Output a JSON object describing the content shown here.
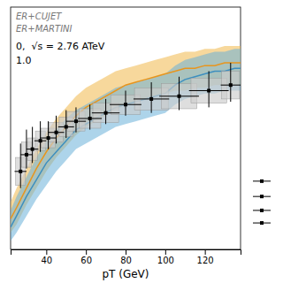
{
  "chart_data": {
    "type": "line",
    "xlabel": "pT (GeV)",
    "xlim": [
      22,
      138
    ],
    "ylim": [
      0.08,
      0.95
    ],
    "xticks": [
      40,
      60,
      80,
      100,
      120
    ],
    "tick_labels": "x",
    "series": [
      {
        "name": "ER+CUJET",
        "type": "line",
        "color": "#e8951d",
        "band_color": "#f0b84a",
        "x": [
          22,
          25,
          30,
          35,
          40,
          45,
          50,
          55,
          60,
          65,
          70,
          75,
          80,
          85,
          90,
          95,
          100,
          105,
          110,
          115,
          120,
          125,
          130,
          135,
          138
        ],
        "values": [
          0.19,
          0.23,
          0.3,
          0.37,
          0.43,
          0.48,
          0.52,
          0.56,
          0.59,
          0.61,
          0.63,
          0.65,
          0.67,
          0.68,
          0.69,
          0.7,
          0.71,
          0.72,
          0.73,
          0.73,
          0.74,
          0.74,
          0.75,
          0.75,
          0.75
        ],
        "low": [
          0.14,
          0.17,
          0.24,
          0.3,
          0.36,
          0.41,
          0.45,
          0.49,
          0.52,
          0.54,
          0.56,
          0.58,
          0.6,
          0.61,
          0.62,
          0.63,
          0.64,
          0.65,
          0.65,
          0.66,
          0.66,
          0.67,
          0.67,
          0.67,
          0.67
        ],
        "high": [
          0.25,
          0.3,
          0.37,
          0.44,
          0.5,
          0.55,
          0.59,
          0.63,
          0.66,
          0.68,
          0.7,
          0.72,
          0.73,
          0.74,
          0.75,
          0.76,
          0.77,
          0.78,
          0.79,
          0.79,
          0.8,
          0.8,
          0.81,
          0.81,
          0.81
        ]
      },
      {
        "name": "ER+MARTINI",
        "type": "line",
        "color": "#3d8fbf",
        "band_color": "#6ab0d8",
        "x": [
          22,
          25,
          30,
          35,
          40,
          45,
          50,
          55,
          60,
          65,
          70,
          75,
          80,
          85,
          90,
          95,
          100,
          105,
          110,
          115,
          120,
          125,
          130,
          135,
          138
        ],
        "values": [
          0.16,
          0.2,
          0.27,
          0.33,
          0.39,
          0.43,
          0.47,
          0.51,
          0.53,
          0.55,
          0.57,
          0.59,
          0.6,
          0.61,
          0.62,
          0.63,
          0.64,
          0.67,
          0.69,
          0.7,
          0.71,
          0.72,
          0.72,
          0.73,
          0.73
        ],
        "low": [
          0.11,
          0.14,
          0.2,
          0.26,
          0.31,
          0.36,
          0.4,
          0.44,
          0.46,
          0.48,
          0.5,
          0.52,
          0.53,
          0.54,
          0.55,
          0.56,
          0.57,
          0.6,
          0.62,
          0.63,
          0.64,
          0.64,
          0.65,
          0.65,
          0.65
        ],
        "high": [
          0.22,
          0.27,
          0.34,
          0.41,
          0.47,
          0.51,
          0.55,
          0.58,
          0.6,
          0.62,
          0.64,
          0.66,
          0.67,
          0.68,
          0.69,
          0.7,
          0.71,
          0.74,
          0.76,
          0.77,
          0.78,
          0.79,
          0.79,
          0.8,
          0.8
        ]
      },
      {
        "type": "scatter",
        "marker": "square",
        "color": "#000000",
        "sys_box_color": "#cccccc",
        "x": [
          27,
          30,
          33,
          37,
          41,
          45,
          50,
          55,
          62,
          70,
          80,
          93,
          107,
          122,
          133
        ],
        "values": [
          0.36,
          0.42,
          0.44,
          0.47,
          0.48,
          0.5,
          0.52,
          0.54,
          0.55,
          0.57,
          0.6,
          0.62,
          0.63,
          0.65,
          0.67
        ],
        "xerr_low": [
          3,
          3,
          3,
          3,
          4,
          4,
          4,
          5,
          6,
          7,
          8,
          9,
          10,
          10,
          5
        ],
        "xerr_high": [
          3,
          3,
          3,
          3,
          4,
          4,
          4,
          5,
          6,
          7,
          8,
          9,
          10,
          10,
          5
        ],
        "yerr_low": [
          0.06,
          0.05,
          0.05,
          0.04,
          0.04,
          0.04,
          0.04,
          0.04,
          0.04,
          0.04,
          0.04,
          0.05,
          0.05,
          0.06,
          0.06
        ],
        "yerr_high": [
          0.1,
          0.09,
          0.08,
          0.07,
          0.06,
          0.06,
          0.06,
          0.05,
          0.05,
          0.05,
          0.05,
          0.06,
          0.07,
          0.07,
          0.08
        ],
        "sys_widths": [
          5,
          5,
          5,
          5,
          7,
          7,
          7,
          9,
          11,
          13,
          15,
          17,
          18,
          18,
          9
        ],
        "sys_heights": [
          0.1,
          0.09,
          0.08,
          0.07,
          0.07,
          0.07,
          0.07,
          0.07,
          0.07,
          0.07,
          0.07,
          0.08,
          0.09,
          0.09,
          0.1
        ]
      }
    ],
    "side_markers": [
      0.175,
      0.22,
      0.27,
      0.325
    ],
    "annotations": [
      "0,  √s = 2.76 ATeV",
      "1.0"
    ]
  }
}
